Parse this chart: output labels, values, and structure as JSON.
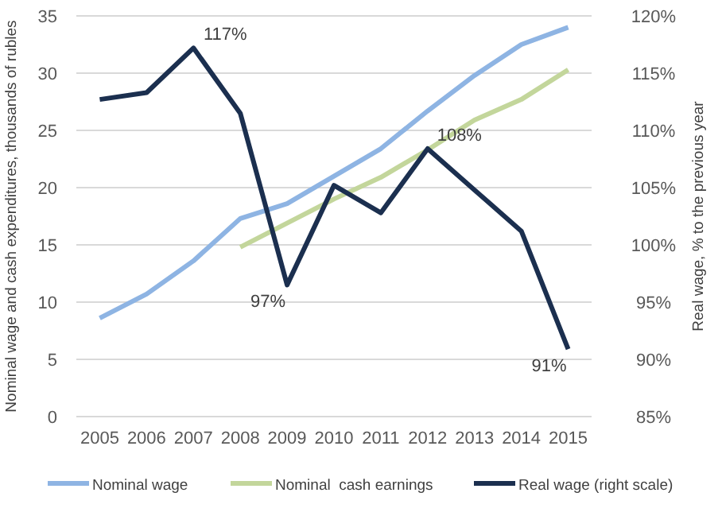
{
  "chart_data": {
    "type": "line",
    "categories": [
      "2005",
      "2006",
      "2007",
      "2008",
      "2009",
      "2010",
      "2011",
      "2012",
      "2013",
      "2014",
      "2015"
    ],
    "ylabel": "Nominal wage and cash expenditures, thousands of rubles",
    "y2label": "Real wage, % to the previous year",
    "ylim": [
      0,
      35
    ],
    "yticks": [
      0,
      5,
      10,
      15,
      20,
      25,
      30,
      35
    ],
    "y2lim": [
      85,
      120
    ],
    "y2ticks": [
      {
        "value": 85,
        "label": "85%"
      },
      {
        "value": 90,
        "label": "90%"
      },
      {
        "value": 95,
        "label": "95%"
      },
      {
        "value": 100,
        "label": "100%"
      },
      {
        "value": 105,
        "label": "105%"
      },
      {
        "value": 110,
        "label": "110%"
      },
      {
        "value": 115,
        "label": "115%"
      },
      {
        "value": 120,
        "label": "120%"
      }
    ],
    "grid": "y",
    "legend": "bottom",
    "marker": "none",
    "line_style": "solid",
    "series": [
      {
        "name": "Nominal wage",
        "color": "#8eb4e3",
        "values": [
          8.6,
          10.7,
          13.6,
          17.3,
          18.6,
          21.0,
          23.4,
          26.7,
          29.8,
          32.5,
          34.0
        ]
      },
      {
        "name": "Nominal  cash earnings",
        "color": "#c3d69b",
        "values": [
          null,
          null,
          null,
          14.8,
          16.9,
          19.0,
          20.9,
          23.3,
          25.9,
          27.7,
          30.3
        ]
      },
      {
        "name": "Real wage (right scale)",
        "color": "#1b2f4f",
        "axis": "y2",
        "values": [
          112.7,
          113.3,
          117.2,
          111.5,
          96.5,
          105.2,
          102.8,
          108.4,
          104.8,
          101.2,
          90.9
        ],
        "value_labels": [
          null,
          null,
          "117%",
          null,
          "97%",
          null,
          null,
          "108%",
          null,
          null,
          "91%"
        ]
      }
    ]
  }
}
